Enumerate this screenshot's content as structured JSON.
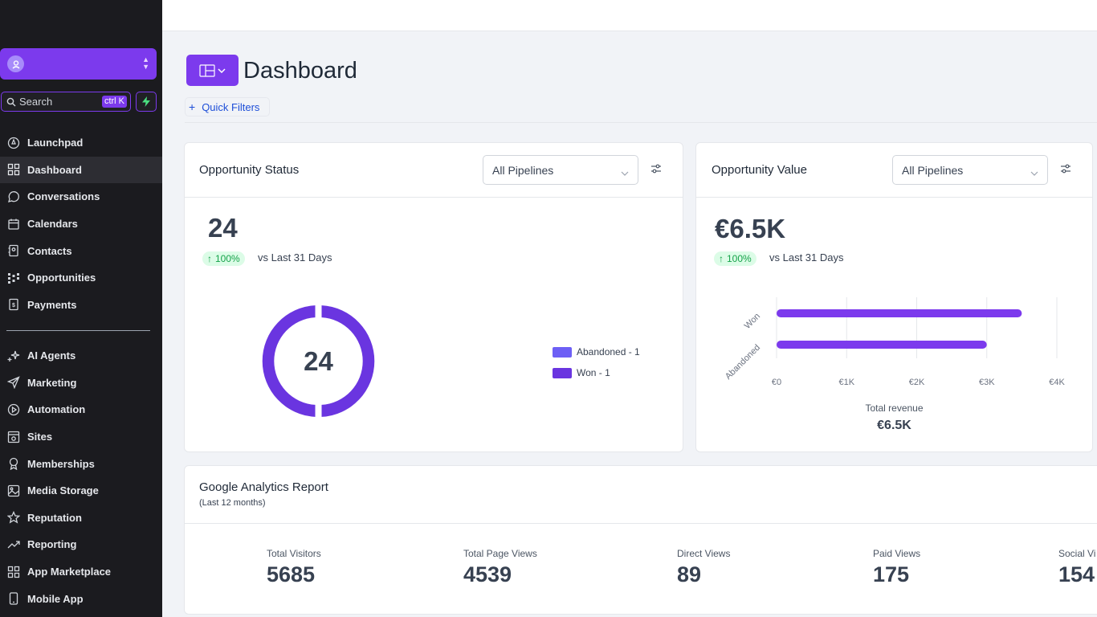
{
  "sidebar": {
    "search_label": "Search",
    "search_shortcut": "ctrl K",
    "items_top": [
      {
        "label": "Launchpad",
        "icon": "launchpad-icon"
      },
      {
        "label": "Dashboard",
        "icon": "grid-icon"
      },
      {
        "label": "Conversations",
        "icon": "chat-icon"
      },
      {
        "label": "Calendars",
        "icon": "calendar-icon"
      },
      {
        "label": "Contacts",
        "icon": "contacts-icon"
      },
      {
        "label": "Opportunities",
        "icon": "opportunities-icon"
      },
      {
        "label": "Payments",
        "icon": "payments-icon"
      }
    ],
    "items_bottom": [
      {
        "label": "AI Agents",
        "icon": "sparkle-icon"
      },
      {
        "label": "Marketing",
        "icon": "send-icon"
      },
      {
        "label": "Automation",
        "icon": "automation-icon"
      },
      {
        "label": "Sites",
        "icon": "sites-icon"
      },
      {
        "label": "Memberships",
        "icon": "award-icon"
      },
      {
        "label": "Media Storage",
        "icon": "image-icon"
      },
      {
        "label": "Reputation",
        "icon": "star-icon"
      },
      {
        "label": "Reporting",
        "icon": "trend-icon"
      },
      {
        "label": "App Marketplace",
        "icon": "apps-icon"
      },
      {
        "label": "Mobile App",
        "icon": "mobile-icon"
      }
    ],
    "active": "Dashboard"
  },
  "header": {
    "title": "Dashboard",
    "quick_filters": "Quick Filters"
  },
  "opportunity_status": {
    "title": "Opportunity Status",
    "pipeline": "All Pipelines",
    "value": "24",
    "change": "100%",
    "change_label": "vs Last 31 Days",
    "donut_center": "24",
    "legend": [
      {
        "label": "Abandoned - 1",
        "color": "#6d5ff5"
      },
      {
        "label": "Won - 1",
        "color": "#6a35e0"
      }
    ]
  },
  "opportunity_value": {
    "title": "Opportunity Value",
    "pipeline": "All Pipelines",
    "value": "€6.5K",
    "change": "100%",
    "change_label": "vs Last 31 Days",
    "total_label": "Total revenue",
    "total_value": "€6.5K"
  },
  "chart_data": {
    "type": "bar",
    "orientation": "horizontal",
    "categories": [
      "Won",
      "Abandoned"
    ],
    "values": [
      3500,
      3000
    ],
    "xlabel": "Total revenue",
    "xlim": [
      0,
      4000
    ],
    "xticks": [
      "€0",
      "€1K",
      "€2K",
      "€3K",
      "€4K"
    ],
    "grid": true,
    "color": "#7c3aed"
  },
  "ga": {
    "title": "Google Analytics Report",
    "subtitle": "(Last 12 months)",
    "stats": [
      {
        "label": "Total Visitors",
        "value": "5685"
      },
      {
        "label": "Total Page Views",
        "value": "4539"
      },
      {
        "label": "Direct Views",
        "value": "89"
      },
      {
        "label": "Paid Views",
        "value": "175"
      },
      {
        "label": "Social Vi",
        "value": "154"
      }
    ]
  },
  "colors": {
    "accent": "#7c3aed",
    "sidebar_bg": "#1b1b1f",
    "positive": "#16a34a"
  }
}
